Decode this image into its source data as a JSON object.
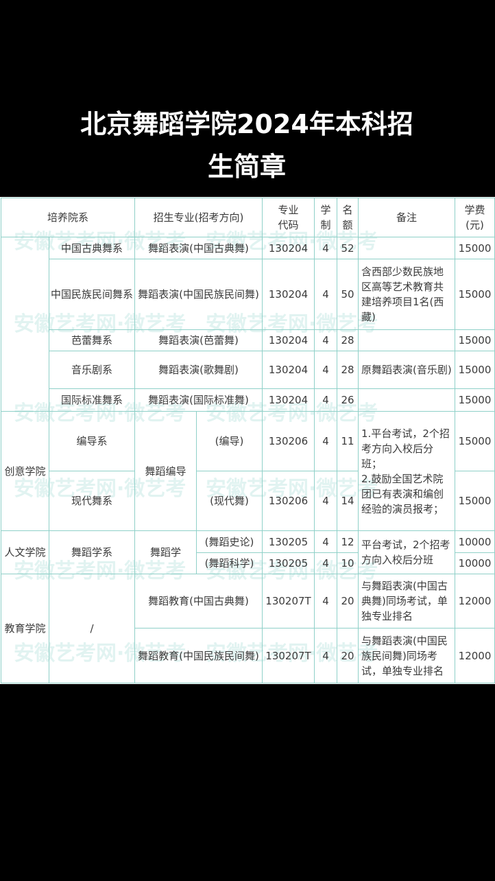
{
  "title": {
    "line1": "北京舞蹈学院2024年本科招",
    "line2": "生简章"
  },
  "watermark": "安徽艺考网·微艺考",
  "table": {
    "headers": {
      "college": "培养院系",
      "major": "招生专业(招考方向)",
      "code": "专业代码",
      "years": "学制",
      "quota": "名额",
      "notes": "备注",
      "fee": "学费(元)"
    },
    "rows": [
      {
        "dept": "中国古典舞系",
        "major": "舞蹈表演(中国古典舞)",
        "code": "130204",
        "years": "4",
        "quota": "52",
        "notes": "",
        "fee": "15000"
      },
      {
        "dept": "中国民族民间舞系",
        "major": "舞蹈表演(中国民族民间舞)",
        "code": "130204",
        "years": "4",
        "quota": "50",
        "notes": "含西部少数民族地区高等艺术教育共建培养项目1名(西藏)",
        "fee": "15000"
      },
      {
        "dept": "芭蕾舞系",
        "major": "舞蹈表演(芭蕾舞)",
        "code": "130204",
        "years": "4",
        "quota": "28",
        "notes": "",
        "fee": "15000"
      },
      {
        "dept": "音乐剧系",
        "major": "舞蹈表演(歌舞剧)",
        "code": "130204",
        "years": "4",
        "quota": "28",
        "notes": "原舞蹈表演(音乐剧)",
        "fee": "15000"
      },
      {
        "dept": "国际标准舞系",
        "major": "舞蹈表演(国际标准舞)",
        "code": "130204",
        "years": "4",
        "quota": "26",
        "notes": "",
        "fee": "15000"
      }
    ],
    "creative": {
      "college": "创意学院",
      "major": "舞蹈编导",
      "notes": "1.平台考试，2个招\n考方向入校后分班；\n2.鼓励全国艺术院团已有表演和编创经验的演员报考；",
      "rows": [
        {
          "dept": "编导系",
          "direction": "(编导)",
          "code": "130206",
          "years": "4",
          "quota": "11",
          "fee": "15000"
        },
        {
          "dept": "现代舞系",
          "direction": "(现代舞)",
          "code": "130206",
          "years": "4",
          "quota": "14",
          "fee": "15000"
        }
      ]
    },
    "humanities": {
      "college": "人文学院",
      "dept": "舞蹈学系",
      "major": "舞蹈学",
      "notes": "平台考试，2个招考方向入校后分班",
      "rows": [
        {
          "direction": "(舞蹈史论)",
          "code": "130205",
          "years": "4",
          "quota": "12",
          "fee": "10000"
        },
        {
          "direction": "(舞蹈科学)",
          "code": "130205",
          "years": "4",
          "quota": "10",
          "fee": "10000"
        }
      ]
    },
    "education": {
      "college": "教育学院",
      "dept": "/",
      "rows": [
        {
          "major": "舞蹈教育(中国古典舞)",
          "code": "130207T",
          "years": "4",
          "quota": "20",
          "notes": "与舞蹈表演(中国古典舞)同场考试，单独专业排名",
          "fee": "12000"
        },
        {
          "major": "舞蹈教育(中国民族民间舞)",
          "code": "130207T",
          "years": "4",
          "quota": "20",
          "notes": "与舞蹈表演(中国民族民间舞)同场考试，单独专业排名",
          "fee": "12000"
        }
      ]
    }
  }
}
